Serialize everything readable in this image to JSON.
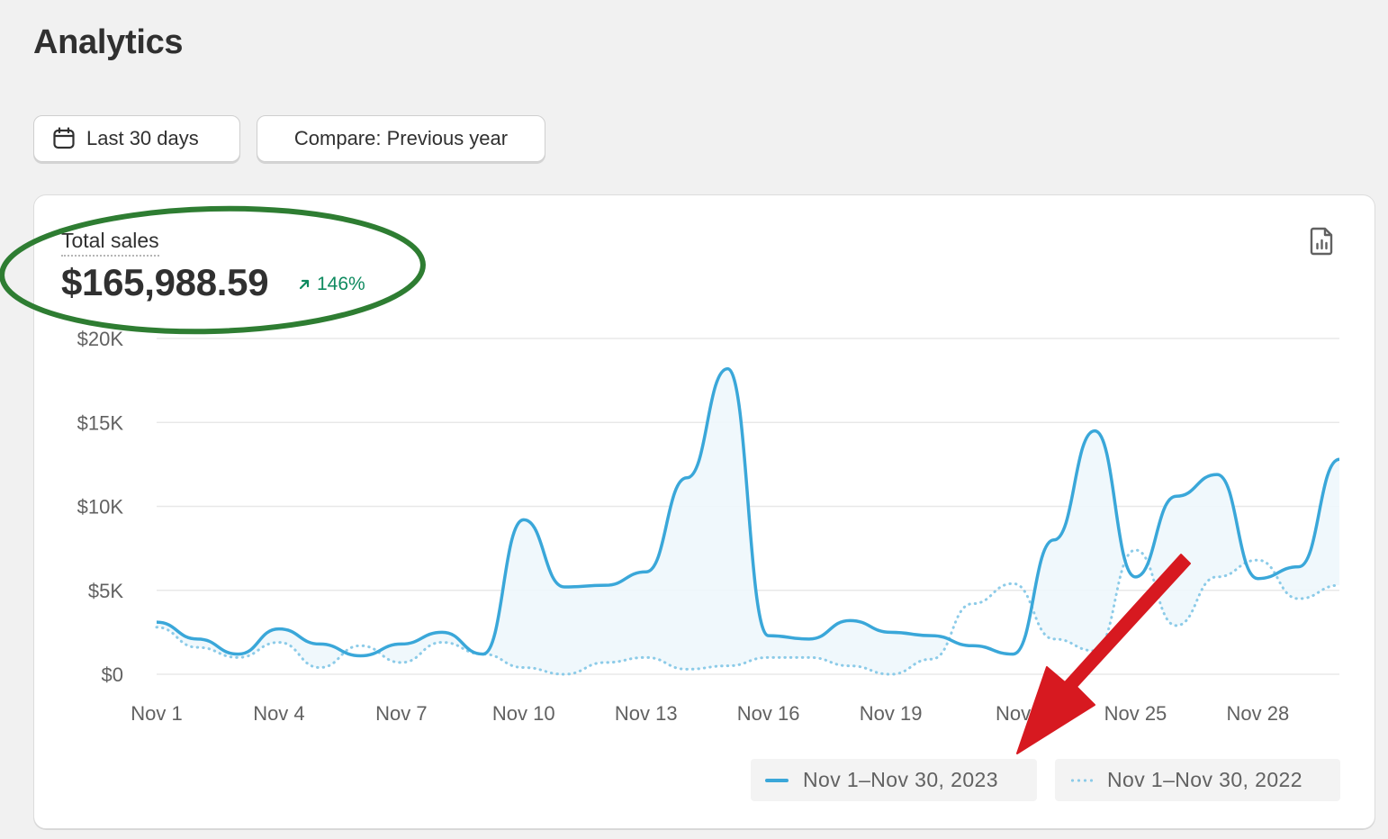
{
  "header": {
    "title": "Analytics"
  },
  "toolbar": {
    "date_range_label": "Last 30 days",
    "compare_label": "Compare: Previous year"
  },
  "metric": {
    "label": "Total sales",
    "value": "$165,988.59",
    "change": "146%",
    "change_color": "#0e8a5f"
  },
  "icons": {
    "date_range": "calendar-icon",
    "export": "export-report-icon",
    "change": "arrow-up-right-icon"
  },
  "colors": {
    "current_series": "#3aa7d9",
    "previous_series": "#8ccbe8",
    "annotation_ellipse": "#2e7d32",
    "annotation_arrow": "#d71920"
  },
  "chart_data": {
    "type": "line",
    "x": [
      "Nov 1",
      "Nov 2",
      "Nov 3",
      "Nov 4",
      "Nov 5",
      "Nov 6",
      "Nov 7",
      "Nov 8",
      "Nov 9",
      "Nov 10",
      "Nov 11",
      "Nov 12",
      "Nov 13",
      "Nov 14",
      "Nov 15",
      "Nov 16",
      "Nov 17",
      "Nov 18",
      "Nov 19",
      "Nov 20",
      "Nov 21",
      "Nov 22",
      "Nov 23",
      "Nov 24",
      "Nov 25",
      "Nov 26",
      "Nov 27",
      "Nov 28",
      "Nov 29",
      "Nov 30"
    ],
    "x_tick_labels": [
      "Nov 1",
      "Nov 4",
      "Nov 7",
      "Nov 10",
      "Nov 13",
      "Nov 16",
      "Nov 19",
      "Nov",
      "Nov 25",
      "Nov 28"
    ],
    "x_tick_indices": [
      0,
      3,
      6,
      9,
      12,
      15,
      18,
      21,
      24,
      27
    ],
    "y_ticks": [
      0,
      5000,
      10000,
      15000,
      20000
    ],
    "y_tick_labels": [
      "$0",
      "$5K",
      "$10K",
      "$15K",
      "$20K"
    ],
    "ylim": [
      0,
      20000
    ],
    "series": [
      {
        "name": "Nov 1–Nov 30, 2023",
        "style": "solid-area",
        "values": [
          3100,
          2100,
          1200,
          2700,
          1800,
          1100,
          1800,
          2500,
          1200,
          9200,
          5200,
          5300,
          6100,
          11700,
          18200,
          2300,
          2100,
          3200,
          2500,
          2300,
          1700,
          1200,
          8000,
          14500,
          5800,
          10600,
          11900,
          5700,
          6400,
          12800
        ]
      },
      {
        "name": "Nov 1–Nov 30, 2022",
        "style": "dotted",
        "values": [
          2800,
          1600,
          1000,
          1900,
          400,
          1700,
          700,
          1900,
          1200,
          400,
          0,
          700,
          1000,
          300,
          500,
          1000,
          1000,
          500,
          0,
          900,
          4200,
          5400,
          2100,
          1400,
          7400,
          2900,
          5800,
          6800,
          4500,
          5300
        ]
      }
    ],
    "legend": [
      "Nov 1–Nov 30, 2023",
      "Nov 1–Nov 30, 2022"
    ],
    "legend_position": "bottom-right",
    "grid": true
  }
}
